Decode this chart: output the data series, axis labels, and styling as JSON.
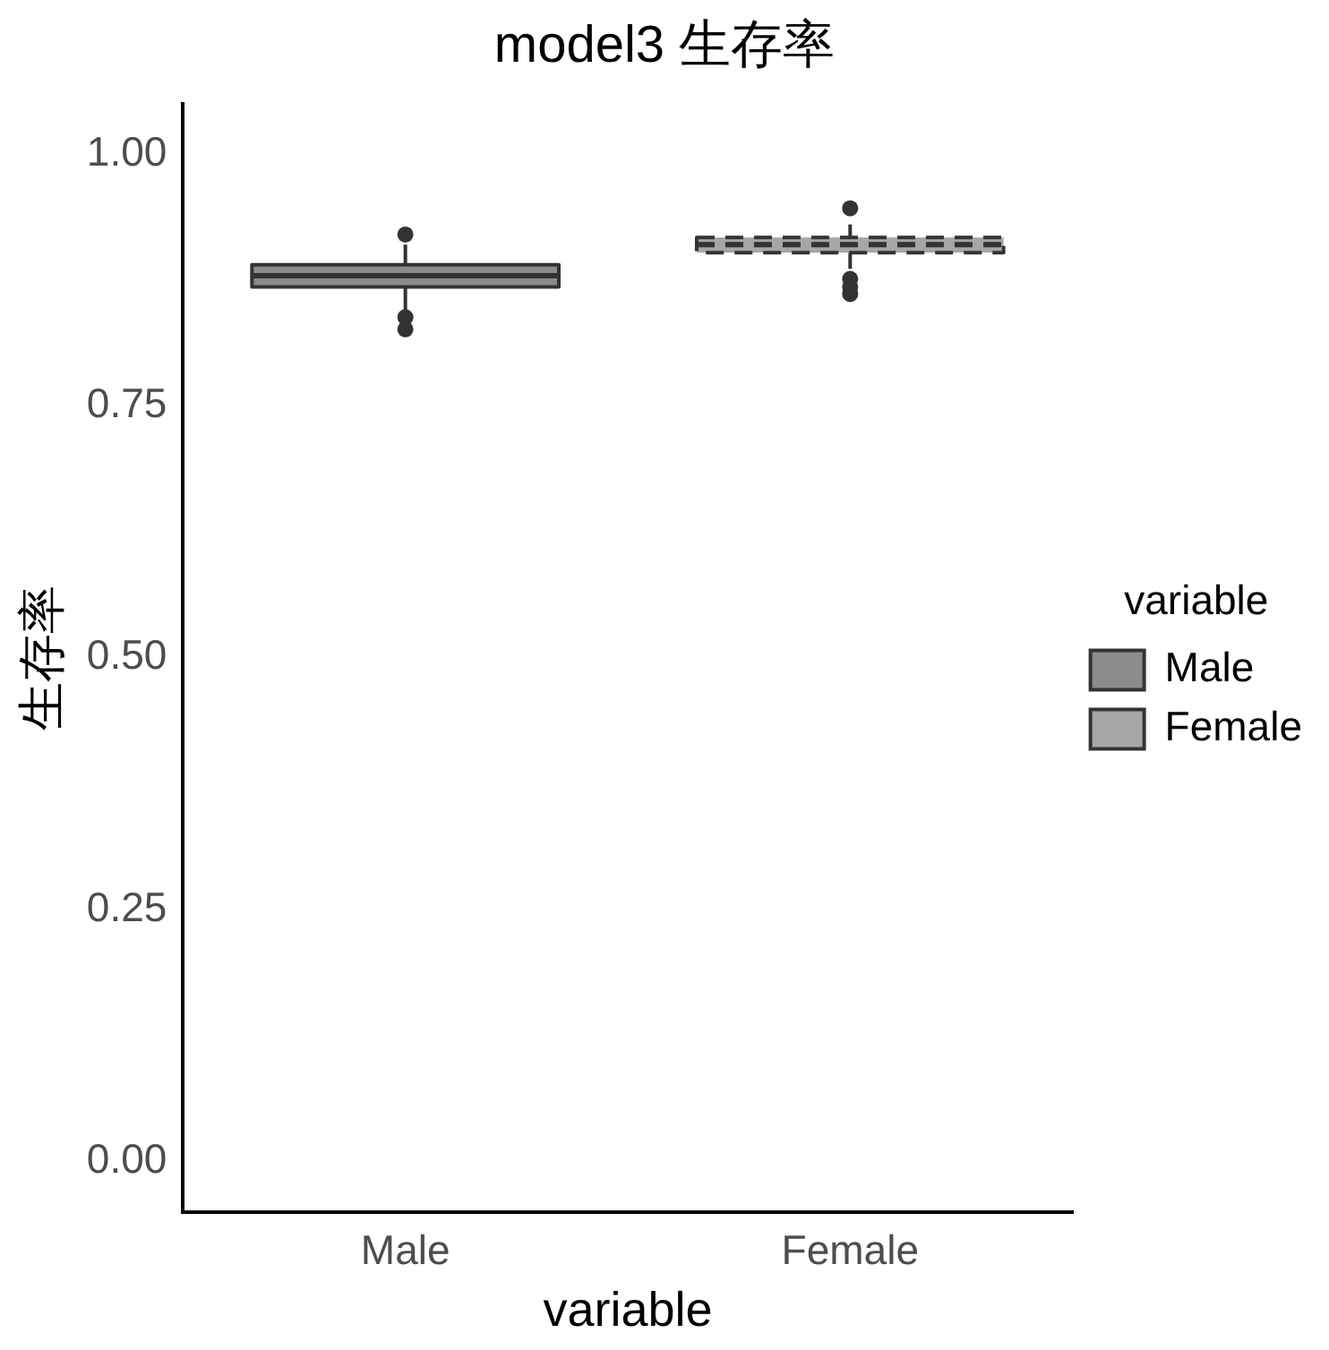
{
  "chart_data": {
    "type": "box",
    "title": "model3 生存率",
    "xlabel": "variable",
    "ylabel": "生存率",
    "legend_title": "variable",
    "legend": "right",
    "categories": [
      "Male",
      "Female"
    ],
    "series": [
      {
        "name": "Male",
        "color": "#8c8c8c",
        "line_style": "solid",
        "boxes": [
          {
            "low": 0.845,
            "q1": 0.868,
            "median": 0.879,
            "q3": 0.89,
            "high": 0.91,
            "outliers": [
              0.92,
              0.838,
              0.826
            ]
          },
          null
        ]
      },
      {
        "name": "Female",
        "color": "#a6a6a6",
        "line_style": "dashed",
        "boxes": [
          null,
          {
            "low": 0.886,
            "q1": 0.902,
            "median": 0.91,
            "q3": 0.917,
            "high": 0.93,
            "outliers": [
              0.946,
              0.876,
              0.868,
              0.861
            ]
          }
        ]
      }
    ],
    "ylim": [
      -0.05,
      1.05
    ],
    "yticks": [
      {
        "value": 0,
        "label": "0.00"
      },
      {
        "value": 0.25,
        "label": "0.25"
      },
      {
        "value": 0.5,
        "label": "0.50"
      },
      {
        "value": 0.75,
        "label": "0.75"
      },
      {
        "value": 1,
        "label": "1.00"
      }
    ],
    "grid": false
  }
}
